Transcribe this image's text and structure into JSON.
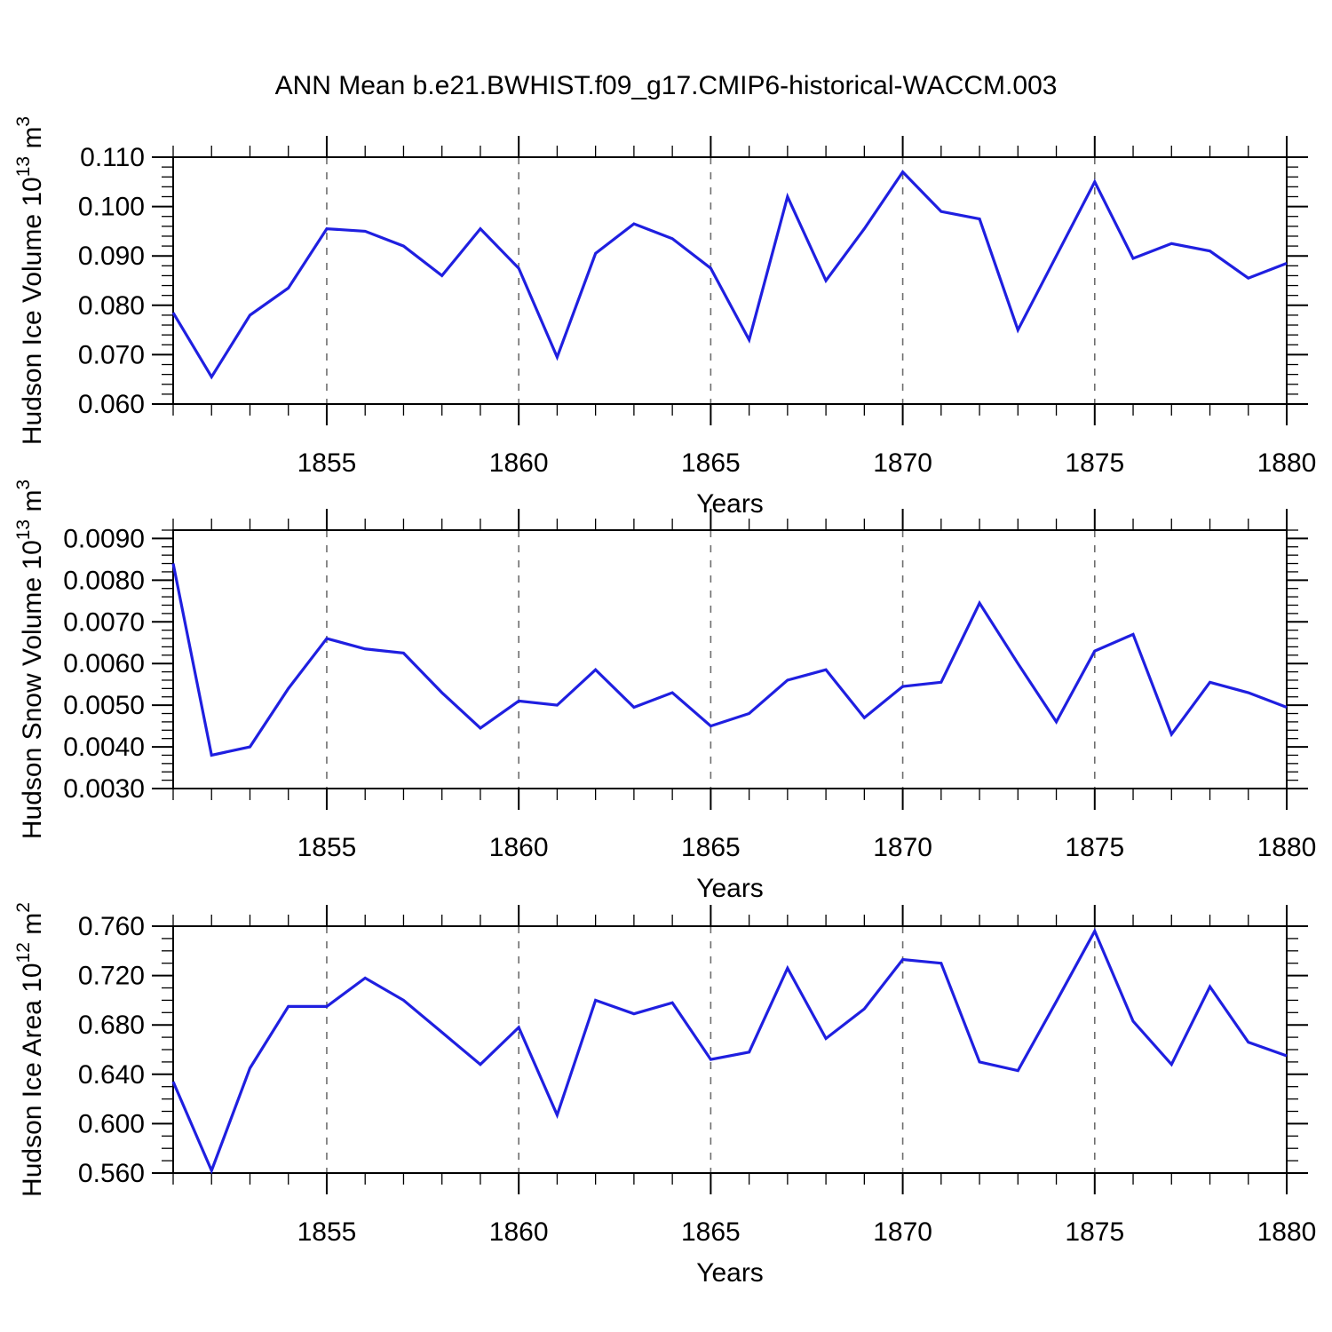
{
  "title": "ANN Mean b.e21.BWHIST.f09_g17.CMIP6-historical-WACCM.003",
  "colors": {
    "line": "#1f1fe0",
    "grid": "#6e6e6e",
    "axis": "#000000",
    "background": "#ffffff"
  },
  "years": [
    1851,
    1852,
    1853,
    1854,
    1855,
    1856,
    1857,
    1858,
    1859,
    1860,
    1861,
    1862,
    1863,
    1864,
    1865,
    1866,
    1867,
    1868,
    1869,
    1870,
    1871,
    1872,
    1873,
    1874,
    1875,
    1876,
    1877,
    1878,
    1879,
    1880
  ],
  "chart_data": [
    {
      "type": "line",
      "id": "hudson-ice-volume",
      "ylabel": "Hudson Ice Volume 10^13 m^3",
      "ylabel_parts": [
        {
          "t": "Hudson Ice Volume 10"
        },
        {
          "t": "13",
          "sup": true
        },
        {
          "t": " m"
        },
        {
          "t": "3",
          "sup": true
        }
      ],
      "xlabel": "Years",
      "ylim": [
        0.06,
        0.11
      ],
      "xlim": [
        1851,
        1880
      ],
      "ytick_values": [
        0.11,
        0.1,
        0.09,
        0.08,
        0.07,
        0.06
      ],
      "ytick_labels": [
        "0.110",
        "0.100",
        "0.090",
        "0.080",
        "0.070",
        "0.060"
      ],
      "y_minor_step": 0.002,
      "xtick_values": [
        1855,
        1860,
        1865,
        1870,
        1875,
        1880
      ],
      "xtick_labels": [
        "1855",
        "1860",
        "1865",
        "1870",
        "1875",
        "1880"
      ],
      "x_minor_step": 1,
      "grid": "vertical-dashed",
      "legend": "none",
      "values": [
        0.0785,
        0.0655,
        0.078,
        0.0835,
        0.0955,
        0.095,
        0.092,
        0.086,
        0.0955,
        0.0875,
        0.0695,
        0.0905,
        0.0965,
        0.0935,
        0.0875,
        0.073,
        0.102,
        0.085,
        0.0955,
        0.107,
        0.099,
        0.0975,
        0.075,
        0.09,
        0.105,
        0.0895,
        0.0925,
        0.091,
        0.0855,
        0.0885
      ]
    },
    {
      "type": "line",
      "id": "hudson-snow-volume",
      "ylabel": "Hudson Snow Volume 10^13 m^3",
      "ylabel_parts": [
        {
          "t": "Hudson Snow Volume 10"
        },
        {
          "t": "13",
          "sup": true
        },
        {
          "t": " m"
        },
        {
          "t": "3",
          "sup": true
        }
      ],
      "xlabel": "Years",
      "ylim": [
        0.003,
        0.0092
      ],
      "xlim": [
        1851,
        1880
      ],
      "ytick_values": [
        0.009,
        0.008,
        0.007,
        0.006,
        0.005,
        0.004,
        0.003
      ],
      "ytick_labels": [
        "0.0090",
        "0.0080",
        "0.0070",
        "0.0060",
        "0.0050",
        "0.0040",
        "0.0030"
      ],
      "y_minor_step": 0.0002,
      "xtick_values": [
        1855,
        1860,
        1865,
        1870,
        1875,
        1880
      ],
      "xtick_labels": [
        "1855",
        "1860",
        "1865",
        "1870",
        "1875",
        "1880"
      ],
      "x_minor_step": 1,
      "grid": "vertical-dashed",
      "legend": "none",
      "values": [
        0.0084,
        0.0038,
        0.004,
        0.0054,
        0.0066,
        0.00635,
        0.00625,
        0.0053,
        0.00445,
        0.0051,
        0.005,
        0.00585,
        0.00495,
        0.0053,
        0.0045,
        0.0048,
        0.0056,
        0.00585,
        0.0047,
        0.00545,
        0.00555,
        0.00745,
        0.006,
        0.0046,
        0.0063,
        0.0067,
        0.0043,
        0.00555,
        0.0053,
        0.00495
      ]
    },
    {
      "type": "line",
      "id": "hudson-ice-area",
      "ylabel": "Hudson Ice Area 10^12 m^2",
      "ylabel_parts": [
        {
          "t": "Hudson Ice Area 10"
        },
        {
          "t": "12",
          "sup": true
        },
        {
          "t": " m"
        },
        {
          "t": "2",
          "sup": true
        }
      ],
      "xlabel": "Years",
      "ylim": [
        0.56,
        0.76
      ],
      "xlim": [
        1851,
        1880
      ],
      "ytick_values": [
        0.76,
        0.72,
        0.68,
        0.64,
        0.6,
        0.56
      ],
      "ytick_labels": [
        "0.760",
        "0.720",
        "0.680",
        "0.640",
        "0.600",
        "0.560"
      ],
      "y_minor_step": 0.01,
      "xtick_values": [
        1855,
        1860,
        1865,
        1870,
        1875,
        1880
      ],
      "xtick_labels": [
        "1855",
        "1860",
        "1865",
        "1870",
        "1875",
        "1880"
      ],
      "x_minor_step": 1,
      "grid": "vertical-dashed",
      "legend": "none",
      "values": [
        0.634,
        0.562,
        0.645,
        0.695,
        0.695,
        0.718,
        0.7,
        0.674,
        0.648,
        0.678,
        0.607,
        0.7,
        0.689,
        0.698,
        0.652,
        0.658,
        0.726,
        0.669,
        0.693,
        0.733,
        0.73,
        0.65,
        0.643,
        0.699,
        0.756,
        0.683,
        0.648,
        0.711,
        0.666,
        0.655
      ]
    }
  ]
}
